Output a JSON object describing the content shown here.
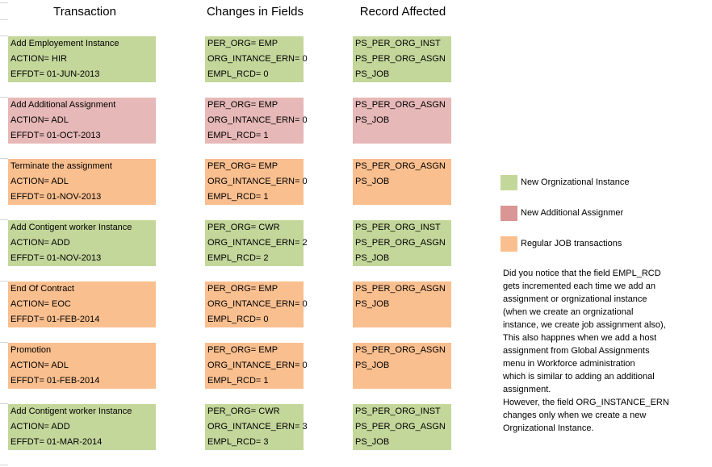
{
  "headers": {
    "transaction": "Transaction",
    "changes": "Changes in Fields",
    "records": "Record Affected"
  },
  "rows": [
    {
      "transaction": [
        "Add Employement Instance",
        "ACTION= HIR",
        "EFFDT= 01-JUN-2013"
      ],
      "changes": [
        "PER_ORG= EMP",
        "ORG_INTANCE_ERN= 0",
        "EMPL_RCD= 0"
      ],
      "records": [
        "PS_PER_ORG_INST",
        "PS_PER_ORG_ASGN",
        "PS_JOB"
      ]
    },
    {
      "transaction": [
        "Add Additional Assignment",
        "ACTION= ADL",
        "EFFDT= 01-OCT-2013"
      ],
      "changes": [
        "PER_ORG= EMP",
        "ORG_INTANCE_ERN= 0",
        "EMPL_RCD= 1"
      ],
      "records": [
        "PS_PER_ORG_ASGN",
        "PS_JOB",
        ""
      ]
    },
    {
      "transaction": [
        "Terminate the assignment",
        "ACTION= ADL",
        "EFFDT= 01-NOV-2013"
      ],
      "changes": [
        "PER_ORG= EMP",
        "ORG_INTANCE_ERN= 0",
        "EMPL_RCD= 1"
      ],
      "records": [
        "PS_PER_ORG_ASGN",
        "PS_JOB",
        ""
      ]
    },
    {
      "transaction": [
        "Add Contigent worker Instance",
        "ACTION= ADD",
        "EFFDT= 01-NOV-2013"
      ],
      "changes": [
        "PER_ORG= CWR",
        "ORG_INTANCE_ERN= 2",
        "EMPL_RCD= 2"
      ],
      "records": [
        "PS_PER_ORG_INST",
        "PS_PER_ORG_ASGN",
        "PS_JOB"
      ]
    },
    {
      "transaction": [
        "End Of Contract",
        "ACTION= EOC",
        "EFFDT= 01-FEB-2014"
      ],
      "changes": [
        "PER_ORG= EMP",
        "ORG_INTANCE_ERN= 0",
        "EMPL_RCD= 0"
      ],
      "records": [
        "PS_PER_ORG_ASGN",
        "PS_JOB",
        ""
      ]
    },
    {
      "transaction": [
        "Promotion",
        "ACTION= ADL",
        "EFFDT= 01-FEB-2014"
      ],
      "changes": [
        "PER_ORG= EMP",
        "ORG_INTANCE_ERN= 0",
        "EMPL_RCD= 1"
      ],
      "records": [
        "PS_PER_ORG_ASGN",
        "PS_JOB",
        ""
      ]
    },
    {
      "transaction": [
        "Add Contigent worker Instance",
        "ACTION= ADD",
        "EFFDT= 01-MAR-2014"
      ],
      "changes": [
        "PER_ORG= CWR",
        "ORG_INTANCE_ERN= 3",
        "EMPL_RCD= 3"
      ],
      "records": [
        "PS_PER_ORG_INST",
        "PS_PER_ORG_ASGN",
        "PS_JOB"
      ]
    }
  ],
  "legend": {
    "new_org": "New Orgnizational Instance",
    "new_assign": "New Additional Assignmer",
    "regular": "Regular JOB transactions"
  },
  "colors": {
    "new_org": "#c4d79b",
    "new_assign": "#e6b8b7",
    "regular": "#fabf8f"
  },
  "note": {
    "lines": [
      "Did you notice that the field EMPL_RCD",
      "gets incremented each time we add an",
      "assignment or orgnizational instance",
      "(when we create an orgnizational",
      "instance, we create job assignment also),",
      "This also happnes when we add a host",
      "assignment from Global Assignments",
      "menu in Workforce administration",
      "which is similar to adding an additional",
      "assignment.",
      "However, the field ORG_INSTANCE_ERN",
      "changes only when we create a new",
      "Orgnizational Instance."
    ]
  }
}
